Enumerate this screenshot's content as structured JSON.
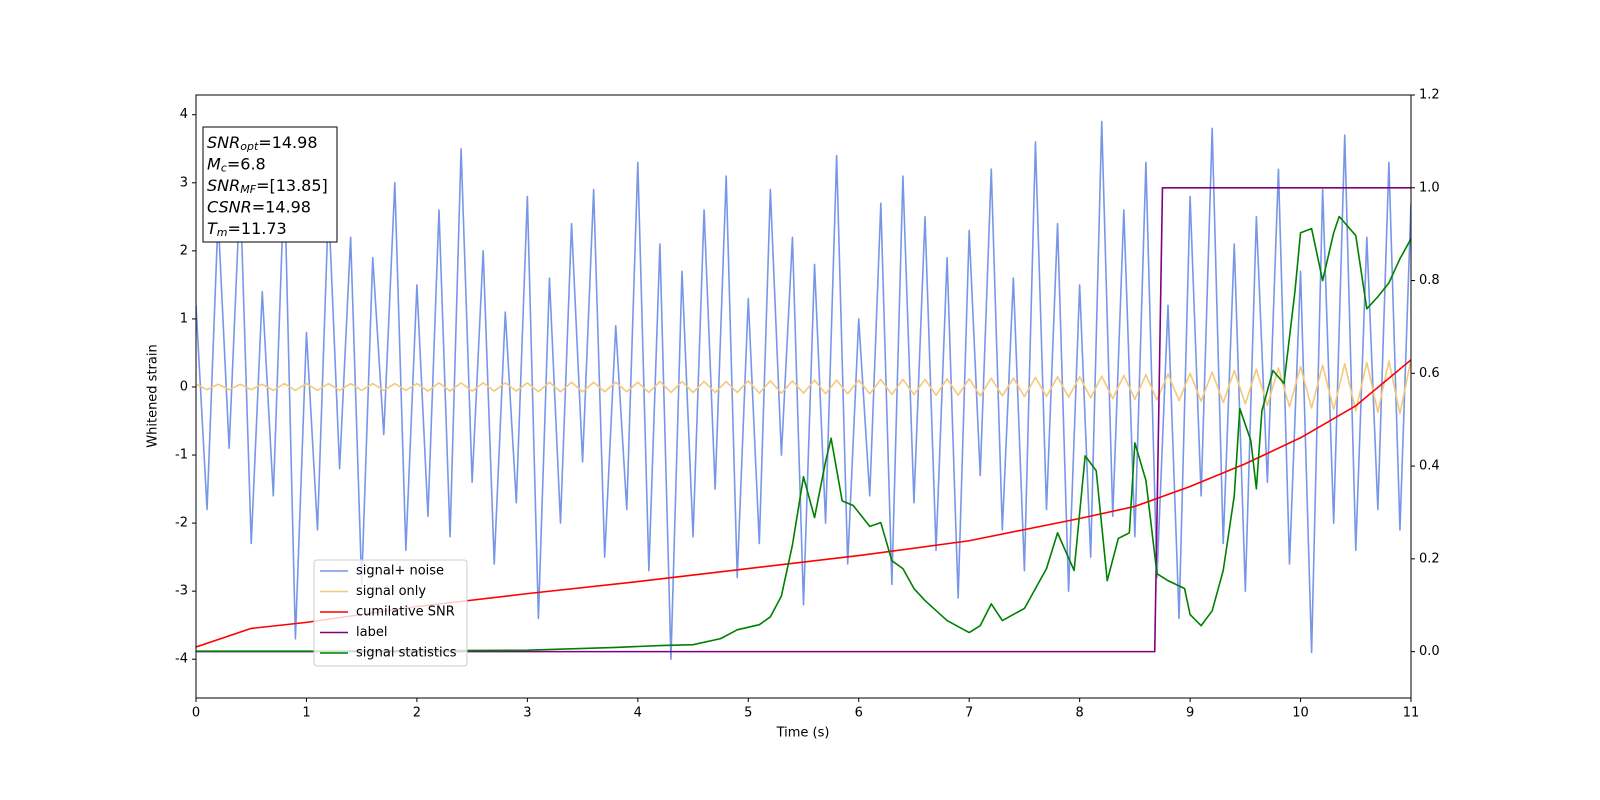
{
  "chart_data": {
    "type": "line",
    "xlabel": "Time (s)",
    "ylabel": "Whitened strain",
    "xlim": [
      0,
      11
    ],
    "xticks": [
      0,
      1,
      2,
      3,
      4,
      5,
      6,
      7,
      8,
      9,
      10,
      11
    ],
    "ylim": [
      -4.57,
      4.29
    ],
    "yticks": [
      -4,
      -3,
      -2,
      -1,
      0,
      1,
      2,
      3,
      4
    ],
    "y2lim": [
      -0.1,
      1.2
    ],
    "y2ticks": [
      {
        "value": 0,
        "label": "0.0"
      },
      {
        "value": 0.2,
        "label": "0.2"
      },
      {
        "value": 0.4,
        "label": "0.4"
      },
      {
        "value": 0.6,
        "label": "0.6"
      },
      {
        "value": 0.8,
        "label": "0.8"
      },
      {
        "value": 1,
        "label": "1.0"
      },
      {
        "value": 1.2,
        "label": "1.2"
      }
    ],
    "legend": "lower left",
    "annotation": [
      {
        "name": "SNR",
        "sub": "opt",
        "text": "=14.98"
      },
      {
        "name": "M",
        "sub": "c",
        "text": "=6.8"
      },
      {
        "name": "SNR",
        "sub": "MF",
        "text": "=[13.85]"
      },
      {
        "name": "CSNR",
        "text": "=14.98"
      },
      {
        "name": "T",
        "sub": "m",
        "text": "=11.73"
      }
    ],
    "x": [
      0,
      0.1,
      0.2,
      0.3,
      0.4,
      0.5,
      0.6,
      0.7,
      0.8,
      0.9,
      1,
      1.1,
      1.2,
      1.3,
      1.4,
      1.5,
      1.6,
      1.7,
      1.8,
      1.9,
      2,
      2.1,
      2.2,
      2.3,
      2.4,
      2.5,
      2.6,
      2.7,
      2.8,
      2.9,
      3,
      3.1,
      3.2,
      3.3,
      3.4,
      3.5,
      3.6,
      3.7,
      3.8,
      3.9,
      4,
      4.1,
      4.2,
      4.3,
      4.4,
      4.5,
      4.6,
      4.7,
      4.8,
      4.9,
      5,
      5.1,
      5.2,
      5.3,
      5.4,
      5.5,
      5.6,
      5.7,
      5.8,
      5.9,
      6,
      6.1,
      6.2,
      6.3,
      6.4,
      6.5,
      6.6,
      6.7,
      6.8,
      6.9,
      7,
      7.1,
      7.2,
      7.3,
      7.4,
      7.5,
      7.6,
      7.7,
      7.8,
      7.9,
      8,
      8.1,
      8.2,
      8.3,
      8.4,
      8.5,
      8.6,
      8.7,
      8.8,
      8.9,
      9,
      9.1,
      9.2,
      9.3,
      9.4,
      9.5,
      9.6,
      9.7,
      9.8,
      9.9,
      10,
      10.1,
      10.2,
      10.3,
      10.4,
      10.5,
      10.6,
      10.7,
      10.8,
      10.9,
      11
    ],
    "series": [
      {
        "name": "signal+ noise",
        "color": "#7896e8",
        "values": [
          1.2,
          -1.8,
          2.5,
          -0.9,
          2.9,
          -2.3,
          1.4,
          -1.6,
          3.1,
          -3.7,
          0.8,
          -2.1,
          2.7,
          -1.2,
          2.2,
          -2.9,
          1.9,
          -0.7,
          3.0,
          -2.4,
          1.5,
          -1.9,
          2.6,
          -2.2,
          3.5,
          -1.4,
          2.0,
          -2.6,
          1.1,
          -1.7,
          2.8,
          -3.4,
          1.6,
          -2.0,
          2.4,
          -1.1,
          2.9,
          -2.5,
          0.9,
          -1.8,
          3.3,
          -2.7,
          2.1,
          -4.0,
          1.7,
          -2.2,
          2.6,
          -1.5,
          3.1,
          -2.8,
          1.3,
          -2.3,
          2.9,
          -1.0,
          2.2,
          -3.2,
          1.8,
          -2.0,
          3.4,
          -2.6,
          1.0,
          -1.6,
          2.7,
          -2.9,
          3.1,
          -1.7,
          2.5,
          -2.4,
          1.9,
          -3.1,
          2.3,
          -1.3,
          3.2,
          -2.1,
          1.6,
          -2.7,
          3.6,
          -1.8,
          2.4,
          -3.0,
          1.5,
          -2.5,
          3.9,
          -1.9,
          2.6,
          -2.2,
          3.3,
          -2.8,
          1.2,
          -3.4,
          2.8,
          -1.6,
          3.8,
          -2.3,
          2.1,
          -3.0,
          2.5,
          -1.4,
          3.2,
          -2.6,
          1.7,
          -3.9,
          2.9,
          -2.0,
          3.7,
          -2.4,
          2.2,
          -1.8,
          3.3,
          -2.1,
          2.7
        ]
      },
      {
        "name": "signal only",
        "color": "#f6c87a",
        "values": [
          0.04,
          -0.04,
          0.04,
          -0.04,
          0.04,
          -0.04,
          0.04,
          -0.05,
          0.05,
          -0.05,
          0.05,
          -0.05,
          0.05,
          -0.05,
          0.05,
          -0.05,
          0.05,
          -0.05,
          0.05,
          -0.05,
          0.05,
          -0.06,
          0.06,
          -0.06,
          0.06,
          -0.06,
          0.06,
          -0.06,
          0.06,
          -0.06,
          0.06,
          -0.07,
          0.07,
          -0.07,
          0.07,
          -0.07,
          0.07,
          -0.07,
          0.07,
          -0.07,
          0.07,
          -0.08,
          0.08,
          -0.08,
          0.08,
          -0.08,
          0.08,
          -0.08,
          0.08,
          -0.08,
          0.09,
          -0.09,
          0.09,
          -0.09,
          0.09,
          -0.09,
          0.1,
          -0.1,
          0.1,
          -0.1,
          0.1,
          -0.1,
          0.11,
          -0.11,
          0.11,
          -0.11,
          0.11,
          -0.12,
          0.12,
          -0.12,
          0.12,
          -0.13,
          0.13,
          -0.13,
          0.13,
          -0.14,
          0.14,
          -0.14,
          0.15,
          -0.15,
          0.15,
          -0.16,
          0.16,
          -0.17,
          0.17,
          -0.18,
          0.18,
          -0.19,
          0.19,
          -0.2,
          0.2,
          -0.21,
          0.22,
          -0.23,
          0.24,
          -0.25,
          0.26,
          -0.27,
          0.28,
          -0.29,
          0.3,
          -0.31,
          0.32,
          -0.33,
          0.34,
          -0.35,
          0.36,
          -0.37,
          0.38,
          -0.39,
          0.4
        ]
      },
      {
        "name": "cumilative SNR",
        "color": "#ff0000",
        "axis": "y2",
        "x": [
          0,
          0.5,
          1,
          2,
          3,
          4,
          5,
          6,
          7,
          8,
          8.5,
          9,
          9.5,
          10,
          10.5,
          11
        ],
        "values": [
          0.01,
          0.05,
          0.063,
          0.097,
          0.125,
          0.151,
          0.179,
          0.207,
          0.239,
          0.287,
          0.313,
          0.356,
          0.405,
          0.461,
          0.53,
          0.629
        ]
      },
      {
        "name": "label",
        "color": "#800080",
        "axis": "y2",
        "x": [
          0,
          8.68,
          8.75,
          11
        ],
        "values": [
          0,
          0,
          1,
          1
        ]
      },
      {
        "name": "signal statistics",
        "color": "#008000",
        "axis": "y2",
        "x": [
          0,
          1,
          2,
          3,
          3.8,
          4.2,
          4.5,
          4.75,
          4.9,
          5.1,
          5.2,
          5.3,
          5.4,
          5.5,
          5.6,
          5.7,
          5.75,
          5.85,
          5.95,
          6.1,
          6.2,
          6.3,
          6.4,
          6.5,
          6.6,
          6.8,
          7.0,
          7.1,
          7.2,
          7.3,
          7.5,
          7.7,
          7.8,
          7.95,
          8.05,
          8.15,
          8.25,
          8.35,
          8.45,
          8.5,
          8.6,
          8.7,
          8.8,
          8.95,
          9.0,
          9.1,
          9.2,
          9.3,
          9.4,
          9.45,
          9.55,
          9.6,
          9.65,
          9.75,
          9.85,
          9.95,
          10.0,
          10.1,
          10.2,
          10.3,
          10.35,
          10.5,
          10.6,
          10.7,
          10.8,
          10.9,
          11.0
        ],
        "values": [
          0.001,
          0.001,
          0.002,
          0.003,
          0.009,
          0.013,
          0.015,
          0.028,
          0.047,
          0.058,
          0.075,
          0.12,
          0.23,
          0.377,
          0.289,
          0.41,
          0.46,
          0.325,
          0.315,
          0.27,
          0.278,
          0.196,
          0.179,
          0.136,
          0.11,
          0.067,
          0.041,
          0.056,
          0.103,
          0.067,
          0.093,
          0.179,
          0.256,
          0.175,
          0.422,
          0.39,
          0.153,
          0.244,
          0.256,
          0.45,
          0.369,
          0.168,
          0.153,
          0.136,
          0.08,
          0.056,
          0.088,
          0.175,
          0.336,
          0.524,
          0.455,
          0.351,
          0.519,
          0.606,
          0.578,
          0.778,
          0.903,
          0.912,
          0.8,
          0.903,
          0.938,
          0.897,
          0.739,
          0.765,
          0.795,
          0.847,
          0.89
        ]
      }
    ]
  }
}
